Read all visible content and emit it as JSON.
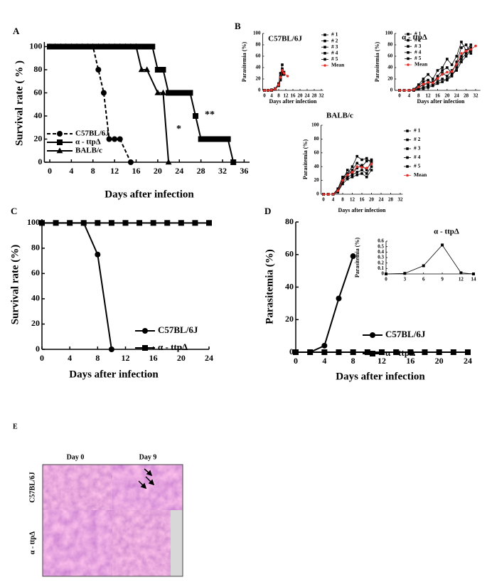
{
  "chart_data": [
    {
      "type": "line",
      "panel": "A",
      "xlabel": "Days after infection",
      "ylabel": "Survival rate ( % )",
      "xlim": [
        -1,
        37
      ],
      "ylim": [
        0,
        104
      ],
      "xticks": [
        0,
        4,
        8,
        12,
        16,
        20,
        24,
        28,
        32,
        36
      ],
      "yticks": [
        0,
        20,
        40,
        60,
        80,
        100
      ],
      "annotations": [
        "*",
        "**"
      ],
      "series": [
        {
          "name": "C57BL/6J",
          "color": "#000000",
          "marker": "circle",
          "dashed": true,
          "x": [
            0,
            2,
            4,
            6,
            8,
            9,
            10,
            11,
            12,
            13,
            15
          ],
          "values": [
            100,
            100,
            100,
            100,
            100,
            80,
            60,
            20,
            20,
            20,
            0
          ]
        },
        {
          "name": "α - ttpΔ",
          "color": "#000000",
          "marker": "square",
          "dashed": false,
          "x": [
            0,
            1,
            2,
            3,
            4,
            5,
            6,
            7,
            8,
            9,
            10,
            11,
            12,
            13,
            14,
            15,
            16,
            17,
            18,
            19,
            20,
            21,
            22,
            23,
            24,
            25,
            26,
            27,
            28,
            29,
            30,
            31,
            32,
            33,
            34
          ],
          "values": [
            100,
            100,
            100,
            100,
            100,
            100,
            100,
            100,
            100,
            100,
            100,
            100,
            100,
            100,
            100,
            100,
            100,
            100,
            100,
            100,
            80,
            80,
            60,
            60,
            60,
            60,
            60,
            40,
            20,
            20,
            20,
            20,
            20,
            20,
            0
          ]
        },
        {
          "name": "BALB/c",
          "color": "#000000",
          "marker": "triangle",
          "dashed": false,
          "x": [
            0,
            1,
            2,
            3,
            4,
            5,
            6,
            7,
            8,
            9,
            10,
            11,
            12,
            13,
            14,
            15,
            16,
            17,
            18,
            20,
            21,
            22
          ],
          "values": [
            100,
            100,
            100,
            100,
            100,
            100,
            100,
            100,
            100,
            100,
            100,
            100,
            100,
            100,
            100,
            100,
            100,
            80,
            80,
            60,
            60,
            0
          ]
        }
      ]
    },
    {
      "type": "line",
      "panel": "B",
      "title": "C57BL/6J",
      "xlabel": "Days after infection",
      "ylabel": "Parasitemia (%)",
      "xlim": [
        -1,
        33
      ],
      "ylim": [
        0,
        100
      ],
      "xticks": [
        0,
        4,
        8,
        12,
        16,
        20,
        24,
        28,
        32
      ],
      "yticks": [
        0,
        20,
        40,
        60,
        80,
        100
      ],
      "x": [
        0,
        2,
        4,
        6,
        8,
        9,
        10,
        11,
        13
      ],
      "series": [
        {
          "name": "# 1",
          "color": "#000000",
          "marker": "square",
          "values": [
            0,
            0,
            0,
            2,
            10,
            25,
            45,
            null,
            null
          ]
        },
        {
          "name": "# 2",
          "color": "#000000",
          "marker": "square",
          "values": [
            0,
            0,
            1,
            3,
            12,
            30,
            38,
            null,
            null
          ]
        },
        {
          "name": "# 3",
          "color": "#000000",
          "marker": "square",
          "values": [
            0,
            0,
            0,
            2,
            8,
            20,
            35,
            32,
            null
          ]
        },
        {
          "name": "# 4",
          "color": "#000000",
          "marker": "square",
          "values": [
            0,
            0,
            1,
            3,
            10,
            22,
            30,
            28,
            null
          ]
        },
        {
          "name": "# 5",
          "color": "#000000",
          "marker": "square",
          "values": [
            0,
            0,
            0,
            2,
            9,
            18,
            28,
            null,
            null
          ]
        },
        {
          "name": "Mean",
          "color": "#e8302a",
          "marker": "circle",
          "values": [
            0,
            0,
            0.4,
            2.4,
            9.8,
            23,
            35.2,
            30,
            25
          ]
        }
      ]
    },
    {
      "type": "line",
      "title": "α - ttpΔ",
      "xlabel": "Days after infection",
      "ylabel": "Parasitemia (%)",
      "xlim": [
        -2,
        34
      ],
      "ylim": [
        0,
        100
      ],
      "xticks": [
        0,
        4,
        8,
        12,
        16,
        20,
        24,
        28,
        32
      ],
      "yticks": [
        0,
        20,
        40,
        60,
        80,
        100
      ],
      "x": [
        0,
        2,
        4,
        6,
        8,
        10,
        12,
        14,
        16,
        18,
        20,
        22,
        24,
        26,
        28,
        30,
        32
      ],
      "series": [
        {
          "name": "# 1",
          "color": "#000000",
          "marker": "square",
          "values": [
            0,
            0,
            0,
            2,
            10,
            20,
            28,
            20,
            35,
            40,
            55,
            45,
            60,
            85,
            70,
            75,
            null
          ]
        },
        {
          "name": "# 2",
          "color": "#000000",
          "marker": "square",
          "values": [
            0,
            0,
            0,
            1,
            8,
            15,
            18,
            12,
            25,
            35,
            40,
            30,
            50,
            75,
            80,
            65,
            null
          ]
        },
        {
          "name": "# 3",
          "color": "#000000",
          "marker": "square",
          "values": [
            0,
            0,
            0,
            1,
            5,
            10,
            12,
            15,
            20,
            30,
            25,
            35,
            45,
            60,
            70,
            80,
            null
          ]
        },
        {
          "name": "# 4",
          "color": "#000000",
          "marker": "square",
          "values": [
            0,
            0,
            0,
            0,
            3,
            5,
            8,
            10,
            15,
            20,
            18,
            25,
            40,
            55,
            65,
            70,
            null
          ]
        },
        {
          "name": "# 5",
          "color": "#000000",
          "marker": "square",
          "values": [
            0,
            0,
            0,
            0,
            2,
            3,
            5,
            8,
            12,
            15,
            20,
            28,
            35,
            50,
            60,
            70,
            null
          ]
        },
        {
          "name": "Mean",
          "color": "#e8302a",
          "marker": "circle",
          "values": [
            0,
            0,
            0,
            1,
            6,
            11,
            14,
            13,
            21,
            28,
            32,
            33,
            46,
            65,
            69,
            72,
            78
          ]
        }
      ]
    },
    {
      "type": "line",
      "title": "BALB/c",
      "xlabel": "Days after infection",
      "ylabel": "Parasitemia (%)",
      "xlim": [
        -1,
        33
      ],
      "ylim": [
        0,
        100
      ],
      "xticks": [
        0,
        4,
        8,
        12,
        16,
        20,
        24,
        28,
        32
      ],
      "yticks": [
        0,
        20,
        40,
        60,
        80,
        100
      ],
      "x": [
        0,
        2,
        4,
        6,
        8,
        10,
        12,
        14,
        16,
        18,
        20
      ],
      "series": [
        {
          "name": "# 1",
          "color": "#000000",
          "marker": "square",
          "values": [
            0,
            0,
            0,
            8,
            25,
            30,
            40,
            55,
            50,
            52,
            45
          ]
        },
        {
          "name": "# 2",
          "color": "#000000",
          "marker": "square",
          "values": [
            0,
            0,
            0,
            6,
            22,
            28,
            35,
            45,
            40,
            48,
            50
          ]
        },
        {
          "name": "# 3",
          "color": "#000000",
          "marker": "square",
          "values": [
            0,
            0,
            0,
            5,
            20,
            35,
            30,
            38,
            42,
            35,
            48
          ]
        },
        {
          "name": "# 4",
          "color": "#000000",
          "marker": "square",
          "values": [
            0,
            0,
            0,
            4,
            18,
            25,
            28,
            32,
            35,
            30,
            40
          ]
        },
        {
          "name": "# 5",
          "color": "#000000",
          "marker": "square",
          "values": [
            0,
            0,
            0,
            3,
            15,
            22,
            25,
            28,
            30,
            25,
            35
          ]
        },
        {
          "name": "Mean",
          "color": "#e8302a",
          "marker": "circle",
          "values": [
            0,
            0,
            0,
            5,
            20,
            28,
            32,
            40,
            39,
            38,
            44
          ]
        }
      ]
    },
    {
      "type": "line",
      "panel": "C",
      "xlabel": "Days after infection",
      "ylabel": "Survival rate (%)",
      "xlim": [
        0,
        24
      ],
      "ylim": [
        0,
        103
      ],
      "xticks": [
        0,
        4,
        8,
        12,
        16,
        20,
        24
      ],
      "yticks": [
        0,
        20,
        40,
        60,
        80,
        100
      ],
      "series": [
        {
          "name": "C57BL/6J",
          "color": "#000000",
          "marker": "circle",
          "dashed": false,
          "x": [
            0,
            6,
            8,
            10
          ],
          "values": [
            100,
            100,
            75,
            0
          ]
        },
        {
          "name": "α - ttpΔ",
          "color": "#000000",
          "marker": "square",
          "dashed": false,
          "x": [
            0,
            2,
            4,
            6,
            8,
            10,
            12,
            14,
            16,
            18,
            20,
            22,
            24
          ],
          "values": [
            100,
            100,
            100,
            100,
            100,
            100,
            100,
            100,
            100,
            100,
            100,
            100,
            100
          ]
        }
      ]
    },
    {
      "type": "line",
      "panel": "D",
      "xlabel": "Days after infection",
      "ylabel": "Parasitemia (%)",
      "xlim": [
        0,
        24
      ],
      "ylim": [
        0,
        80
      ],
      "xticks": [
        0,
        4,
        8,
        12,
        16,
        20,
        24
      ],
      "yticks": [
        0,
        20,
        40,
        60,
        80
      ],
      "series": [
        {
          "name": "C57BL/6J",
          "color": "#000000",
          "marker": "circle",
          "dashed": false,
          "x": [
            0,
            2,
            4,
            6,
            8
          ],
          "values": [
            0,
            0,
            4,
            33,
            59
          ]
        },
        {
          "name": "α - ttpΔ",
          "color": "#000000",
          "marker": "square",
          "dashed": false,
          "x": [
            0,
            2,
            4,
            6,
            8,
            10,
            12,
            14,
            16,
            18,
            20,
            22,
            24
          ],
          "values": [
            0,
            0,
            0,
            0,
            0,
            0,
            0,
            0,
            0,
            0,
            0,
            0,
            0
          ]
        }
      ]
    },
    {
      "type": "line",
      "title": "α - ttpΔ",
      "ylabel": "Parasitemia (%)",
      "xlim": [
        0,
        14
      ],
      "ylim": [
        0,
        0.6
      ],
      "xticks": [
        0,
        3,
        6,
        9,
        12,
        14
      ],
      "yticks": [
        0,
        0.1,
        0.2,
        0.3,
        0.4,
        0.5,
        0.6
      ],
      "series": [
        {
          "color": "#000000",
          "marker": "square",
          "dashed": false,
          "x": [
            0,
            3,
            6,
            9,
            12,
            14
          ],
          "values": [
            0,
            0.01,
            0.15,
            0.53,
            0.02,
            0
          ]
        }
      ]
    }
  ],
  "figure_panel": {
    "label": "E",
    "columns": [
      "Day 0",
      "Day 9"
    ],
    "rows": [
      "C57BL/6J",
      "α - ttpΔ"
    ]
  }
}
